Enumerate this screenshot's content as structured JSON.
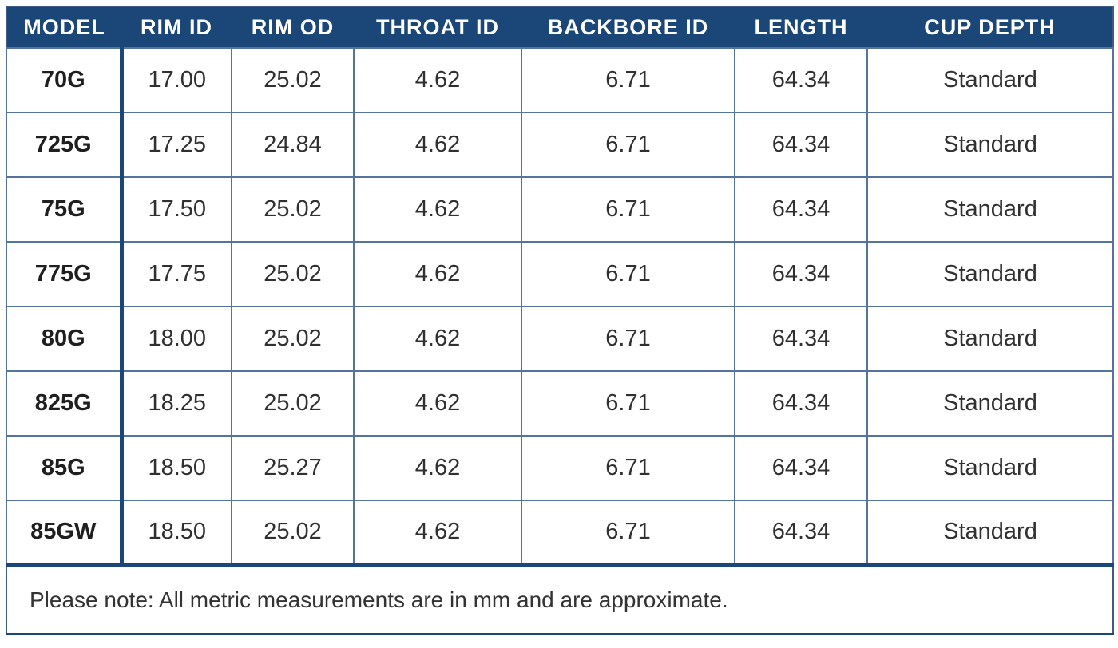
{
  "header": {
    "columns": [
      "MODEL",
      "RIM ID",
      "RIM OD",
      "THROAT ID",
      "BACKBORE ID",
      "LENGTH",
      "CUP DEPTH"
    ]
  },
  "rows": [
    [
      "70G",
      "17.00",
      "25.02",
      "4.62",
      "6.71",
      "64.34",
      "Standard"
    ],
    [
      "725G",
      "17.25",
      "24.84",
      "4.62",
      "6.71",
      "64.34",
      "Standard"
    ],
    [
      "75G",
      "17.50",
      "25.02",
      "4.62",
      "6.71",
      "64.34",
      "Standard"
    ],
    [
      "775G",
      "17.75",
      "25.02",
      "4.62",
      "6.71",
      "64.34",
      "Standard"
    ],
    [
      "80G",
      "18.00",
      "25.02",
      "4.62",
      "6.71",
      "64.34",
      "Standard"
    ],
    [
      "825G",
      "18.25",
      "25.02",
      "4.62",
      "6.71",
      "64.34",
      "Standard"
    ],
    [
      "85G",
      "18.50",
      "25.27",
      "4.62",
      "6.71",
      "64.34",
      "Standard"
    ],
    [
      "85GW",
      "18.50",
      "25.02",
      "4.62",
      "6.71",
      "64.34",
      "Standard"
    ]
  ],
  "note": "Please note: All metric measurements are in mm and are approximate.",
  "colors": {
    "header_bg": "#1B4778",
    "thick_border": "#1B4778",
    "thin_border": "#54749E",
    "outer_border": "#3C5C88",
    "body_text": "#303030",
    "header_text": "#FFFFFF"
  }
}
